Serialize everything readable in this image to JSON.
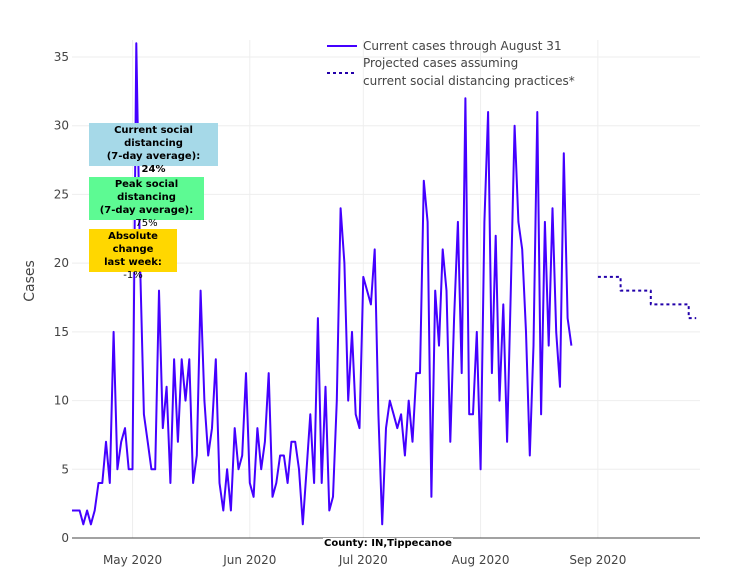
{
  "chart_data": {
    "type": "line",
    "title": "",
    "xlabel": "",
    "ylabel": "Cases",
    "ylim": [
      0,
      37
    ],
    "y_ticks": [
      0,
      5,
      10,
      15,
      20,
      25,
      30,
      35
    ],
    "x_ticks": [
      {
        "date": "2020-05-01",
        "label": "May 2020"
      },
      {
        "date": "2020-06-01",
        "label": "Jun 2020"
      },
      {
        "date": "2020-07-01",
        "label": "Jul 2020"
      },
      {
        "date": "2020-08-01",
        "label": "Aug 2020"
      },
      {
        "date": "2020-09-01",
        "label": "Sep 2020"
      }
    ],
    "xlim": [
      "2020-04-15",
      "2020-09-28"
    ],
    "grid": true,
    "legend": {
      "placement": "top-center",
      "entries": [
        {
          "name": "Current cases through August 31",
          "style": "solid"
        },
        {
          "name": "Projected cases assuming\ncurrent social distancing practices*",
          "style": "dotted"
        }
      ]
    },
    "series": [
      {
        "name": "Current cases through August 31",
        "color": "#4400ff",
        "style": "solid",
        "start_date": "2020-04-15",
        "values": [
          2,
          2,
          2,
          1,
          2,
          1,
          2,
          4,
          4,
          7,
          4,
          15,
          5,
          7,
          8,
          5,
          5,
          36,
          20,
          9,
          7,
          5,
          5,
          18,
          8,
          11,
          4,
          13,
          7,
          13,
          10,
          13,
          4,
          6,
          18,
          10,
          6,
          8,
          13,
          4,
          2,
          5,
          2,
          8,
          5,
          6,
          12,
          4,
          3,
          8,
          5,
          7,
          12,
          3,
          4,
          6,
          6,
          4,
          7,
          7,
          5,
          1,
          5,
          9,
          4,
          16,
          4,
          11,
          2,
          3,
          10,
          24,
          20,
          10,
          15,
          9,
          8,
          19,
          18,
          17,
          21,
          9,
          1,
          8,
          10,
          9,
          8,
          9,
          6,
          10,
          7,
          12,
          12,
          26,
          23,
          3,
          18,
          14,
          21,
          18,
          7,
          16,
          23,
          12,
          32,
          9,
          9,
          15,
          5,
          23,
          31,
          12,
          22,
          10,
          17,
          7,
          18,
          30,
          23,
          21,
          15,
          6,
          14,
          31,
          9,
          23,
          14,
          24,
          15,
          11,
          28,
          16,
          14
        ]
      },
      {
        "name": "Projected cases assuming current social distancing practices*",
        "color": "#2200aa",
        "style": "dotted",
        "start_date": "2020-09-01",
        "values": [
          19,
          19,
          19,
          19,
          19,
          19,
          18,
          18,
          18,
          18,
          18,
          18,
          18,
          18,
          17,
          17,
          17,
          17,
          17,
          17,
          17,
          17,
          17,
          17,
          16,
          16,
          16
        ]
      }
    ]
  },
  "annotations": {
    "current": {
      "title": "Current social distancing",
      "subtitle": "(7-day average):",
      "value": "24%",
      "color": "#a6d9e8"
    },
    "peak": {
      "title": "Peak social distancing",
      "subtitle": "(7-day average):",
      "value": "75%",
      "color": "#5dfa93"
    },
    "change": {
      "title": "Absolute change",
      "subtitle": "last week:",
      "value": "-1%",
      "color": "#ffd700"
    }
  },
  "footer": {
    "county_label": "County: IN,Tippecanoe"
  }
}
